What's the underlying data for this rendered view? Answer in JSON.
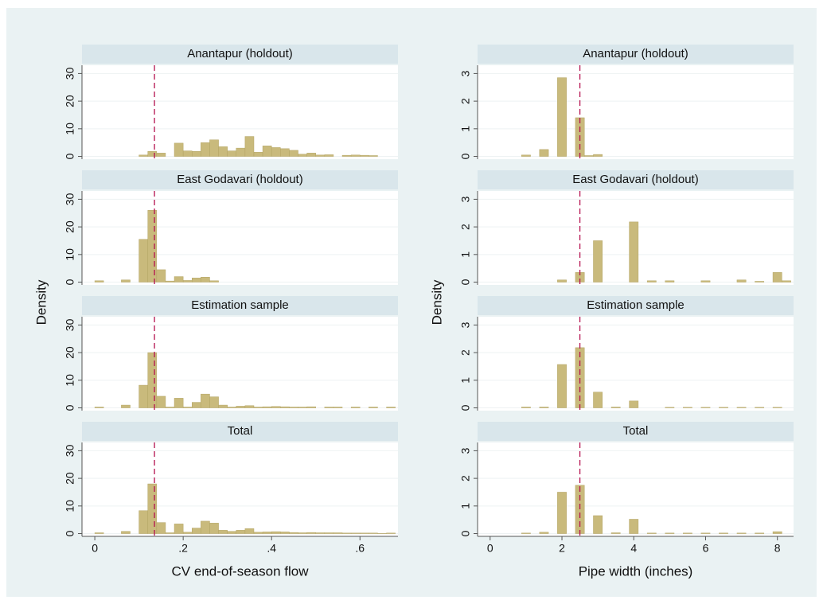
{
  "chart_data": [
    {
      "type": "histogram",
      "xlabel": "CV end-of-season flow",
      "ylabel": "Density",
      "xlim": [
        -0.029,
        0.686
      ],
      "xticks": [
        0,
        {
          "value": 0.2,
          "label": ".2"
        },
        {
          "value": 0.4,
          "label": ".4"
        },
        {
          "value": 0.6,
          "label": ".6"
        }
      ],
      "ylim": [
        -1,
        33
      ],
      "yticks": [
        0,
        10,
        20,
        30
      ],
      "grid": true,
      "color": "#c9ba7c",
      "vline": 0.135,
      "vline_color": "#b5124f",
      "bins": [
        0,
        0.02,
        0.04,
        0.06,
        0.08,
        0.1,
        0.12,
        0.14,
        0.16,
        0.18,
        0.2,
        0.22,
        0.24,
        0.26,
        0.28,
        0.3,
        0.32,
        0.34,
        0.36,
        0.38,
        0.4,
        0.42,
        0.44,
        0.46,
        0.48,
        0.5,
        0.52,
        0.54,
        0.56,
        0.58,
        0.6,
        0.62,
        0.64,
        0.66,
        0.68
      ],
      "panels": [
        {
          "title": "Anantapur (holdout)",
          "values": [
            0,
            0,
            0,
            0,
            0,
            0.5,
            1.8,
            1.2,
            0,
            4.8,
            2,
            1.8,
            5,
            6,
            3.5,
            2,
            3,
            7.2,
            1.5,
            3.8,
            3.2,
            2.8,
            2.2,
            0.8,
            1.2,
            0.5,
            0.6,
            0,
            0.4,
            0.5,
            0.4,
            0.3,
            0,
            0
          ]
        },
        {
          "title": "East Godavari (holdout)",
          "values": [
            0.5,
            0,
            0,
            0.8,
            0,
            15.5,
            26,
            4.5,
            0.4,
            2,
            0.6,
            1.5,
            1.8,
            0.5,
            0,
            0,
            0,
            0,
            0,
            0,
            0,
            0,
            0,
            0,
            0,
            0,
            0,
            0,
            0,
            0,
            0,
            0,
            0,
            0
          ]
        },
        {
          "title": "Estimation sample",
          "values": [
            0.3,
            0,
            0,
            1,
            0,
            8.2,
            20,
            4.2,
            0.3,
            3.5,
            0.3,
            2,
            5,
            4,
            1,
            0.3,
            0.6,
            0.8,
            0.3,
            0.4,
            0.5,
            0.4,
            0.3,
            0.3,
            0.4,
            0,
            0.3,
            0.3,
            0,
            0.3,
            0,
            0.3,
            0,
            0.3
          ]
        },
        {
          "title": "Total",
          "values": [
            0.3,
            0,
            0,
            0.8,
            0,
            8.3,
            18,
            4,
            0.3,
            3.5,
            0.5,
            2,
            4.5,
            3.8,
            1.2,
            0.8,
            1.2,
            1.8,
            0.5,
            0.6,
            0.7,
            0.6,
            0.4,
            0.3,
            0.4,
            0.3,
            0.3,
            0.3,
            0.2,
            0.2,
            0.2,
            0.2,
            0.1,
            0.2
          ]
        }
      ]
    },
    {
      "type": "histogram",
      "xlabel": "Pipe width (inches)",
      "ylabel": "Density",
      "xlim": [
        -0.35,
        8.45
      ],
      "xticks": [
        0,
        2,
        4,
        6,
        8
      ],
      "ylim": [
        -0.1,
        3.3
      ],
      "yticks": [
        0,
        1,
        2,
        3
      ],
      "grid": true,
      "color": "#c9ba7c",
      "vline": 2.5,
      "vline_color": "#b5124f",
      "bins": [
        0.875,
        1.125,
        1.375,
        1.625,
        1.875,
        2.125,
        2.375,
        2.625,
        2.875,
        3.125,
        3.375,
        3.625,
        3.875,
        4.125,
        4.375,
        4.625,
        4.875,
        5.125,
        5.375,
        5.625,
        5.875,
        6.125,
        6.375,
        6.625,
        6.875,
        7.125,
        7.375,
        7.625,
        7.875,
        8.125,
        8.375
      ],
      "panels": [
        {
          "title": "Anantapur (holdout)",
          "values": [
            0.05,
            0,
            0.25,
            0,
            2.85,
            0,
            1.4,
            0.03,
            0.07,
            0,
            0,
            0,
            0,
            0,
            0,
            0,
            0,
            0,
            0,
            0,
            0,
            0,
            0,
            0,
            0,
            0,
            0,
            0,
            0,
            0
          ]
        },
        {
          "title": "East Godavari (holdout)",
          "values": [
            0,
            0,
            0,
            0,
            0.08,
            0,
            0.35,
            0,
            1.5,
            0,
            0,
            0,
            2.18,
            0,
            0.05,
            0,
            0.05,
            0,
            0,
            0,
            0.05,
            0,
            0,
            0,
            0.08,
            0,
            0.03,
            0,
            0.35,
            0.05
          ]
        },
        {
          "title": "Estimation sample",
          "values": [
            0.03,
            0,
            0.03,
            0,
            1.57,
            0,
            2.18,
            0,
            0.57,
            0,
            0.03,
            0,
            0.25,
            0,
            0,
            0,
            0.02,
            0,
            0.02,
            0,
            0.02,
            0,
            0.02,
            0,
            0.02,
            0,
            0.02,
            0,
            0.02,
            0
          ]
        },
        {
          "title": "Total",
          "values": [
            0.02,
            0,
            0.05,
            0,
            1.5,
            0,
            1.75,
            0,
            0.65,
            0,
            0.03,
            0,
            0.52,
            0,
            0.02,
            0,
            0.02,
            0,
            0.02,
            0,
            0.02,
            0,
            0.02,
            0,
            0.02,
            0,
            0.02,
            0,
            0.07,
            0
          ]
        }
      ]
    }
  ]
}
